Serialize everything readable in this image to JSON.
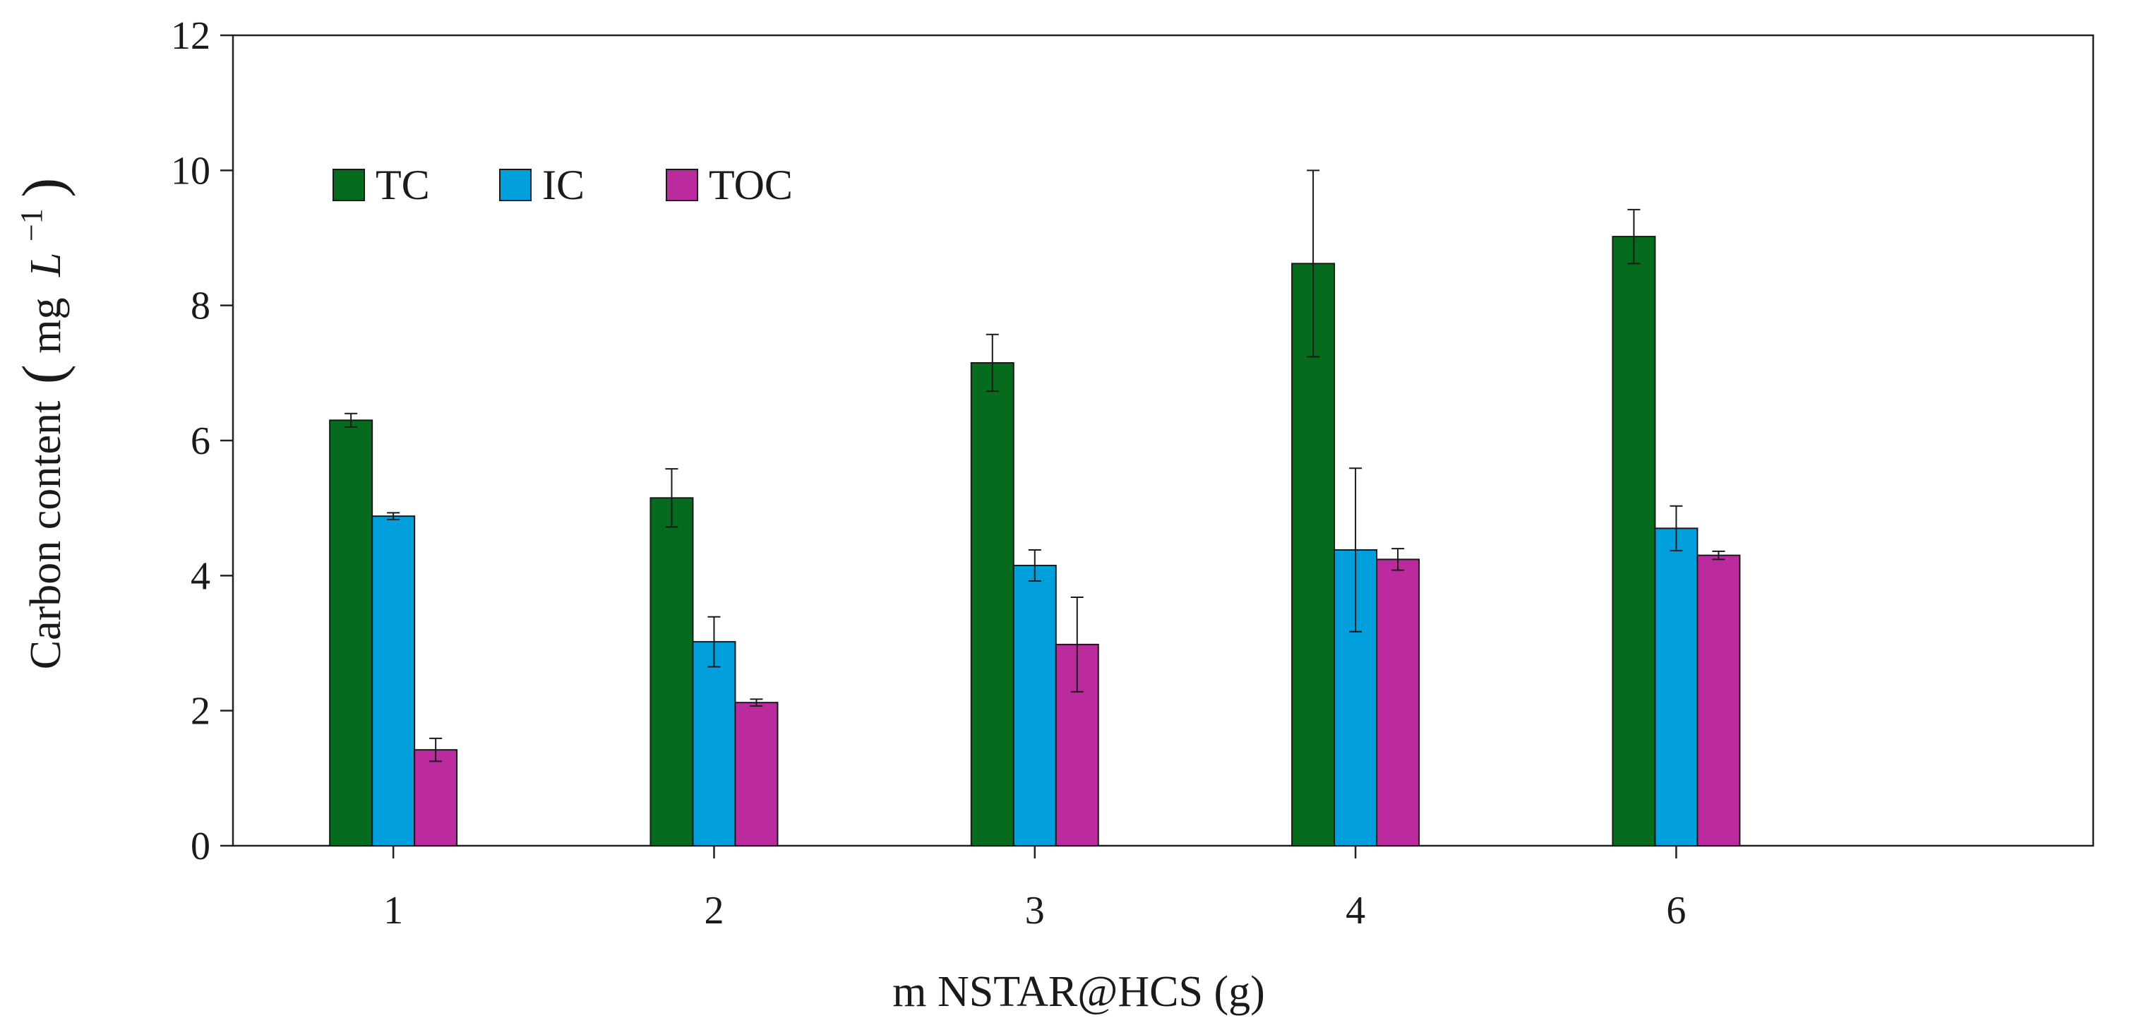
{
  "chart_data": {
    "type": "bar",
    "xlabel": "m NSTAR@HCS (g)",
    "ylabel_main": "Carbon content",
    "ylabel_unit": "mg",
    "ylabel_unit_symbol": "L",
    "ylabel_exponent": "−1",
    "ylim": [
      0,
      12
    ],
    "yticks": [
      "0",
      "2",
      "4",
      "6",
      "8",
      "10",
      "12"
    ],
    "grid": false,
    "legend_position": "top-left",
    "categories": [
      "1",
      "2",
      "3",
      "4",
      "6"
    ],
    "series": [
      {
        "name": "TC",
        "color": "#056c1e",
        "values": [
          6.3,
          5.15,
          7.15,
          8.62,
          9.02
        ],
        "errors": [
          0.1,
          0.43,
          0.42,
          1.38,
          0.4
        ]
      },
      {
        "name": "IC",
        "color": "#01a0dc",
        "values": [
          4.88,
          3.02,
          4.15,
          4.38,
          4.7
        ],
        "errors": [
          0.05,
          0.37,
          0.23,
          1.21,
          0.33
        ]
      },
      {
        "name": "TOC",
        "color": "#bb2b9e",
        "values": [
          1.42,
          2.12,
          2.98,
          4.24,
          4.3
        ],
        "errors": [
          0.17,
          0.05,
          0.7,
          0.16,
          0.06
        ]
      }
    ]
  }
}
